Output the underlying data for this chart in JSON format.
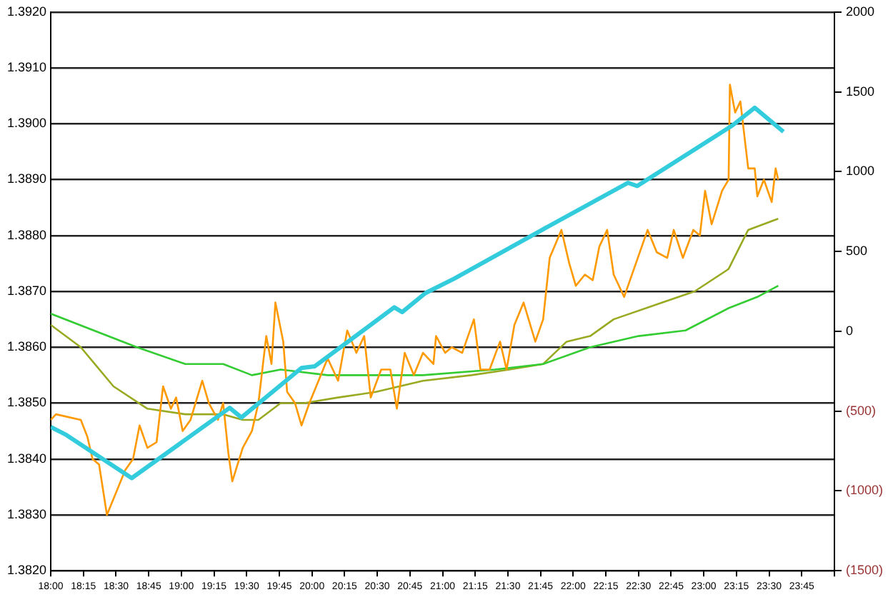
{
  "chart_data": {
    "type": "line",
    "xlim": [
      18,
      24
    ],
    "xticks": [
      {
        "value": 18,
        "label": "18:00"
      },
      {
        "value": 18.25,
        "label": "18:15"
      },
      {
        "value": 18.5,
        "label": "18:30"
      },
      {
        "value": 18.75,
        "label": "18:45"
      },
      {
        "value": 19,
        "label": "19:00"
      },
      {
        "value": 19.25,
        "label": "19:15"
      },
      {
        "value": 19.5,
        "label": "19:30"
      },
      {
        "value": 19.75,
        "label": "19:45"
      },
      {
        "value": 20,
        "label": "20:00"
      },
      {
        "value": 20.25,
        "label": "20:15"
      },
      {
        "value": 20.5,
        "label": "20:30"
      },
      {
        "value": 20.75,
        "label": "20:45"
      },
      {
        "value": 21,
        "label": "21:00"
      },
      {
        "value": 21.25,
        "label": "21:15"
      },
      {
        "value": 21.5,
        "label": "21:30"
      },
      {
        "value": 21.75,
        "label": "21:45"
      },
      {
        "value": 22,
        "label": "22:00"
      },
      {
        "value": 22.25,
        "label": "22:15"
      },
      {
        "value": 22.5,
        "label": "22:30"
      },
      {
        "value": 22.75,
        "label": "22:45"
      },
      {
        "value": 23,
        "label": "23:00"
      },
      {
        "value": 23.25,
        "label": "23:15"
      },
      {
        "value": 23.5,
        "label": "23:30"
      },
      {
        "value": 23.75,
        "label": "23:45"
      },
      {
        "value": 24,
        "label": null
      }
    ],
    "ylim": [
      1.382,
      1.392
    ],
    "yticks": [
      {
        "value": 1.382,
        "label": "1.3820"
      },
      {
        "value": 1.383,
        "label": "1.3830"
      },
      {
        "value": 1.384,
        "label": "1.3840"
      },
      {
        "value": 1.385,
        "label": "1.3850"
      },
      {
        "value": 1.386,
        "label": "1.3860"
      },
      {
        "value": 1.387,
        "label": "1.3870"
      },
      {
        "value": 1.388,
        "label": "1.3880"
      },
      {
        "value": 1.389,
        "label": "1.3890"
      },
      {
        "value": 1.39,
        "label": "1.3900"
      },
      {
        "value": 1.391,
        "label": "1.3910"
      },
      {
        "value": 1.392,
        "label": "1.3920"
      }
    ],
    "y2lim": [
      -1500,
      2000
    ],
    "y2ticks": [
      {
        "value": -1500,
        "label": "(1500)"
      },
      {
        "value": -1000,
        "label": "(1000)"
      },
      {
        "value": -500,
        "label": "(500)"
      },
      0,
      500,
      1000,
      1500,
      2000
    ],
    "grid": "y",
    "legend": false,
    "marker": "none",
    "line_style": "solid",
    "series": [
      {
        "color": "#99aa22",
        "x": [
          18.0,
          18.23,
          18.48,
          18.74,
          19.03,
          19.32,
          19.47,
          19.59,
          19.76,
          19.94,
          20.2,
          20.49,
          20.85,
          21.22,
          21.51,
          21.77,
          21.95,
          22.13,
          22.31,
          22.68,
          22.93,
          23.19,
          23.34,
          23.57
        ],
        "values": [
          1.3864,
          1.386,
          1.3853,
          1.3849,
          1.3848,
          1.3848,
          1.3847,
          1.3847,
          1.385,
          1.385,
          1.3851,
          1.3852,
          1.3854,
          1.3855,
          1.3856,
          1.3857,
          1.3861,
          1.3862,
          1.3865,
          1.3868,
          1.387,
          1.3874,
          1.3881,
          1.3883
        ]
      },
      {
        "color": "#33cc33",
        "x": [
          18.0,
          18.66,
          19.03,
          19.32,
          19.54,
          19.76,
          20.12,
          20.49,
          20.85,
          21.4,
          21.77,
          22.13,
          22.5,
          22.86,
          23.19,
          23.41,
          23.57
        ],
        "values": [
          1.3866,
          1.386,
          1.3857,
          1.3857,
          1.3855,
          1.3856,
          1.3855,
          1.3855,
          1.3855,
          1.3856,
          1.3857,
          1.386,
          1.3862,
          1.3863,
          1.3867,
          1.3869,
          1.3871
        ]
      },
      {
        "color": "#ff9900",
        "x": [
          18.0,
          18.04,
          18.23,
          18.28,
          18.32,
          18.37,
          18.43,
          18.5,
          18.57,
          18.63,
          18.68,
          18.74,
          18.81,
          18.86,
          18.92,
          18.96,
          19.01,
          19.07,
          19.16,
          19.21,
          19.28,
          19.32,
          19.36,
          19.39,
          19.47,
          19.54,
          19.59,
          19.65,
          19.69,
          19.72,
          19.78,
          19.81,
          19.87,
          19.92,
          19.98,
          20.05,
          20.12,
          20.2,
          20.27,
          20.34,
          20.4,
          20.45,
          20.53,
          20.6,
          20.65,
          20.71,
          20.78,
          20.85,
          20.93,
          20.95,
          21.02,
          21.07,
          21.15,
          21.24,
          21.29,
          21.36,
          21.44,
          21.49,
          21.55,
          21.62,
          21.71,
          21.77,
          21.82,
          21.91,
          21.97,
          22.02,
          22.09,
          22.15,
          22.2,
          22.26,
          22.31,
          22.39,
          22.48,
          22.57,
          22.64,
          22.72,
          22.77,
          22.84,
          22.92,
          22.97,
          23.01,
          23.06,
          23.14,
          23.19,
          23.2,
          23.24,
          23.28,
          23.34,
          23.39,
          23.41,
          23.46,
          23.52,
          23.55,
          23.57
        ],
        "values": [
          1.3847,
          1.3848,
          1.3847,
          1.3844,
          1.384,
          1.3839,
          1.383,
          1.3834,
          1.3838,
          1.384,
          1.3846,
          1.3842,
          1.3843,
          1.3853,
          1.3849,
          1.3851,
          1.3845,
          1.3847,
          1.3854,
          1.385,
          1.3847,
          1.385,
          1.3841,
          1.3836,
          1.3842,
          1.3845,
          1.385,
          1.3862,
          1.3857,
          1.3868,
          1.3861,
          1.3852,
          1.385,
          1.3846,
          1.385,
          1.3854,
          1.3858,
          1.3854,
          1.3863,
          1.3859,
          1.3862,
          1.3851,
          1.3856,
          1.3856,
          1.3849,
          1.3859,
          1.3855,
          1.3859,
          1.3857,
          1.3862,
          1.3859,
          1.386,
          1.3859,
          1.3865,
          1.3856,
          1.3856,
          1.3861,
          1.3856,
          1.3864,
          1.3868,
          1.3861,
          1.3865,
          1.3876,
          1.3881,
          1.3875,
          1.3871,
          1.3873,
          1.3872,
          1.3878,
          1.3881,
          1.3873,
          1.3869,
          1.3875,
          1.3881,
          1.3877,
          1.3876,
          1.3881,
          1.3876,
          1.3881,
          1.388,
          1.3888,
          1.3882,
          1.3888,
          1.389,
          1.3907,
          1.3902,
          1.3904,
          1.3892,
          1.3892,
          1.3887,
          1.389,
          1.3886,
          1.3892,
          1.389
        ]
      },
      {
        "color": "#33ccdd",
        "axis": "y2",
        "x": [
          18.0,
          18.12,
          18.62,
          19.37,
          19.46,
          19.92,
          20.02,
          20.63,
          20.69,
          20.87,
          21.09,
          21.75,
          22.42,
          22.49,
          23.22,
          23.39,
          23.61
        ],
        "values": [
          -600,
          -650,
          -920,
          -480,
          -540,
          -230,
          -220,
          150,
          120,
          240,
          330,
          630,
          930,
          910,
          1290,
          1400,
          1250
        ]
      }
    ]
  }
}
